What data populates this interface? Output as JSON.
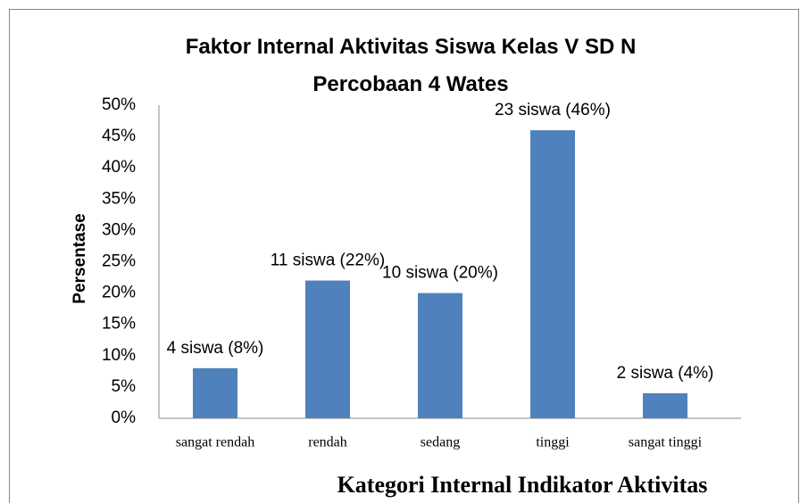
{
  "chart_data": {
    "type": "bar",
    "title": "Faktor Internal Aktivitas Siswa Kelas V SD N Percobaan 4 Wates",
    "ylabel": "Persentase",
    "xlabel": "Kategori  Internal Indikator Aktivitas",
    "categories": [
      "sangat rendah",
      "rendah",
      "sedang",
      "tinggi",
      "sangat tinggi"
    ],
    "values": [
      8,
      22,
      20,
      46,
      4
    ],
    "value_labels": [
      "4 siswa (8%)",
      "11 siswa (22%)",
      "10 siswa (20%)",
      "23 siswa (46%)",
      "2 siswa (4%)"
    ],
    "color": "#4f81bd",
    "ylim": [
      0,
      50
    ],
    "yticks": [
      {
        "value": 0,
        "label": "0%"
      },
      {
        "value": 5,
        "label": "5%"
      },
      {
        "value": 10,
        "label": "10%"
      },
      {
        "value": 15,
        "label": "15%"
      },
      {
        "value": 20,
        "label": "20%"
      },
      {
        "value": 25,
        "label": "25%"
      },
      {
        "value": 30,
        "label": "30%"
      },
      {
        "value": 35,
        "label": "35%"
      },
      {
        "value": 40,
        "label": "40%"
      },
      {
        "value": 45,
        "label": "45%"
      },
      {
        "value": 50,
        "label": "50%"
      }
    ],
    "grid": false
  }
}
